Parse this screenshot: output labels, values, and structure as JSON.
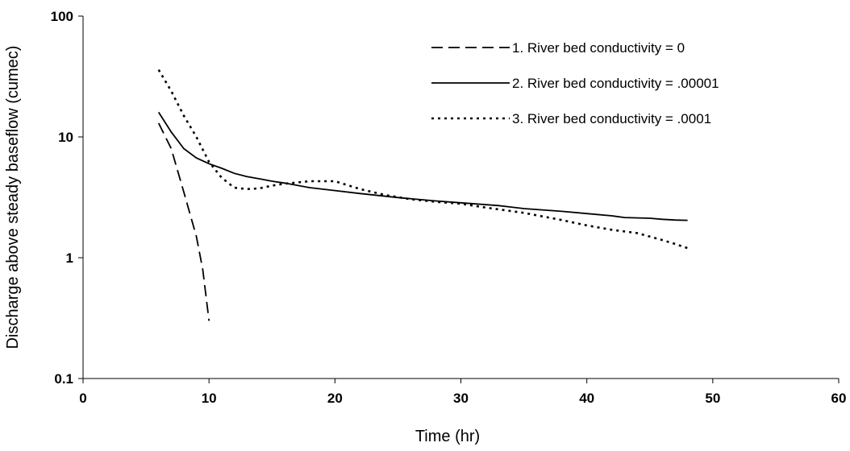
{
  "chart_data": {
    "type": "line",
    "title": "",
    "xlabel": "Time (hr)",
    "ylabel": "Discharge above steady baseflow (cumec)",
    "xlim": [
      0,
      60
    ],
    "ylim": [
      0.1,
      100
    ],
    "yscale": "log",
    "x_ticks": [
      "0",
      "10",
      "20",
      "30",
      "40",
      "50",
      "60"
    ],
    "y_ticks": [
      "0.1",
      "1",
      "10",
      "100"
    ],
    "x_tick_values": [
      0,
      10,
      20,
      30,
      40,
      50,
      60
    ],
    "y_tick_values": [
      0.1,
      1,
      10,
      100
    ],
    "grid": false,
    "legend_position": "top-right",
    "series": [
      {
        "name": "1. River bed conductivity = 0",
        "style": "dashed",
        "color": "#000000",
        "points": [
          [
            6,
            13
          ],
          [
            7,
            8
          ],
          [
            8,
            3.5
          ],
          [
            9,
            1.5
          ],
          [
            9.5,
            0.8
          ],
          [
            10,
            0.3
          ]
        ]
      },
      {
        "name": "2. River bed conductivity = .00001",
        "style": "solid",
        "color": "#000000",
        "points": [
          [
            6,
            16
          ],
          [
            7,
            11
          ],
          [
            8,
            8
          ],
          [
            9,
            6.7
          ],
          [
            10,
            6
          ],
          [
            11,
            5.5
          ],
          [
            12,
            5
          ],
          [
            13,
            4.7
          ],
          [
            14,
            4.5
          ],
          [
            15,
            4.3
          ],
          [
            16,
            4.15
          ],
          [
            18,
            3.8
          ],
          [
            20,
            3.6
          ],
          [
            22,
            3.4
          ],
          [
            25,
            3.15
          ],
          [
            28,
            2.95
          ],
          [
            30,
            2.85
          ],
          [
            33,
            2.7
          ],
          [
            35,
            2.55
          ],
          [
            38,
            2.42
          ],
          [
            40,
            2.32
          ],
          [
            42,
            2.22
          ],
          [
            43,
            2.15
          ],
          [
            45,
            2.12
          ],
          [
            46,
            2.08
          ],
          [
            47,
            2.05
          ],
          [
            48,
            2.04
          ]
        ]
      },
      {
        "name": "3. River bed conductivity = .0001",
        "style": "dotted",
        "color": "#000000",
        "points": [
          [
            6,
            36
          ],
          [
            7,
            24
          ],
          [
            8,
            15
          ],
          [
            9,
            10
          ],
          [
            10,
            6.2
          ],
          [
            11,
            4.6
          ],
          [
            12,
            3.8
          ],
          [
            13,
            3.7
          ],
          [
            14,
            3.75
          ],
          [
            15,
            3.95
          ],
          [
            16,
            4.1
          ],
          [
            18,
            4.3
          ],
          [
            20,
            4.3
          ],
          [
            22,
            3.7
          ],
          [
            24,
            3.3
          ],
          [
            26,
            3.05
          ],
          [
            28,
            2.9
          ],
          [
            30,
            2.8
          ],
          [
            32,
            2.6
          ],
          [
            35,
            2.35
          ],
          [
            38,
            2.05
          ],
          [
            40,
            1.85
          ],
          [
            42,
            1.7
          ],
          [
            44,
            1.6
          ],
          [
            46,
            1.4
          ],
          [
            47,
            1.3
          ],
          [
            48,
            1.2
          ]
        ]
      }
    ]
  }
}
